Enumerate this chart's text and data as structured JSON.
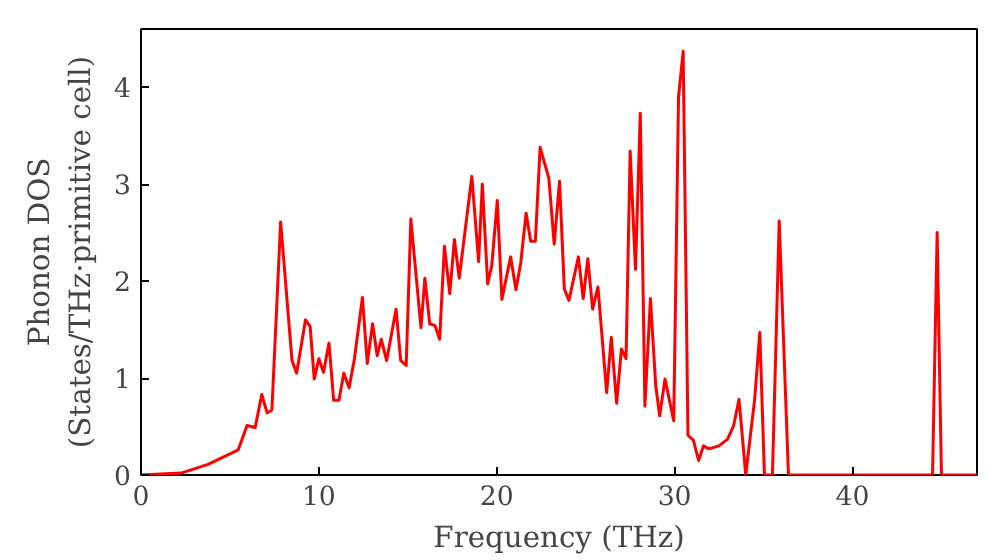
{
  "chart_data": {
    "type": "line",
    "xlabel": "Frequency (THz)",
    "ylabel": "Phonon DOS\n(States/THz·primitive cell)",
    "xlim": [
      0,
      47
    ],
    "ylim": [
      0,
      4.6
    ],
    "xticks": [
      0,
      10,
      20,
      30,
      40
    ],
    "yticks": [
      0,
      1,
      2,
      3,
      4
    ],
    "grid": false,
    "marker": "none",
    "line_style": "solid",
    "series": [
      {
        "color": "#ff0000",
        "x": [
          0,
          2.26,
          3.77,
          5.47,
          5.96,
          6.42,
          6.79,
          7.09,
          7.36,
          7.85,
          8.49,
          8.75,
          9.25,
          9.51,
          9.74,
          10.0,
          10.26,
          10.57,
          10.83,
          11.13,
          11.4,
          11.7,
          12.0,
          12.45,
          12.72,
          13.02,
          13.28,
          13.51,
          13.81,
          14.34,
          14.6,
          14.91,
          15.17,
          15.74,
          15.96,
          16.23,
          16.53,
          16.79,
          17.06,
          17.36,
          17.62,
          17.89,
          18.6,
          18.98,
          19.19,
          19.49,
          19.72,
          20.03,
          20.29,
          20.78,
          21.08,
          21.35,
          21.65,
          21.91,
          22.17,
          22.44,
          22.93,
          23.23,
          23.53,
          23.8,
          24.06,
          24.59,
          24.86,
          25.12,
          25.39,
          25.69,
          26.18,
          26.44,
          26.74,
          27.01,
          27.27,
          27.5,
          27.8,
          28.07,
          28.33,
          28.64,
          28.94,
          29.16,
          29.46,
          29.95,
          30.22,
          30.48,
          30.75,
          31.05,
          31.35,
          31.62,
          31.92,
          32.49,
          32.98,
          33.32,
          33.62,
          34.0,
          34.5,
          34.79,
          35.05,
          35.5,
          35.88,
          36.4,
          44.5,
          44.76,
          45.0,
          47
        ],
        "values": [
          0,
          0.02,
          0.11,
          0.26,
          0.51,
          0.49,
          0.83,
          0.64,
          0.67,
          2.61,
          1.18,
          1.05,
          1.6,
          1.53,
          0.99,
          1.2,
          1.06,
          1.36,
          0.77,
          0.77,
          1.05,
          0.9,
          1.2,
          1.83,
          1.15,
          1.56,
          1.23,
          1.4,
          1.18,
          1.71,
          1.18,
          1.13,
          2.64,
          1.52,
          2.03,
          1.56,
          1.54,
          1.4,
          2.36,
          1.87,
          2.43,
          2.03,
          3.08,
          2.2,
          3.0,
          1.97,
          2.16,
          2.83,
          1.81,
          2.25,
          1.91,
          2.19,
          2.7,
          2.41,
          2.41,
          3.38,
          3.06,
          2.38,
          3.03,
          1.92,
          1.8,
          2.25,
          1.82,
          2.23,
          1.71,
          1.94,
          0.85,
          1.42,
          0.74,
          1.3,
          1.2,
          3.34,
          2.12,
          3.73,
          0.71,
          1.82,
          0.92,
          0.61,
          0.99,
          0.56,
          3.9,
          4.37,
          0.41,
          0.36,
          0.15,
          0.3,
          0.27,
          0.3,
          0.37,
          0.51,
          0.78,
          0,
          0.78,
          1.47,
          0,
          0,
          2.62,
          0,
          0,
          2.5,
          0,
          0
        ]
      }
    ]
  }
}
